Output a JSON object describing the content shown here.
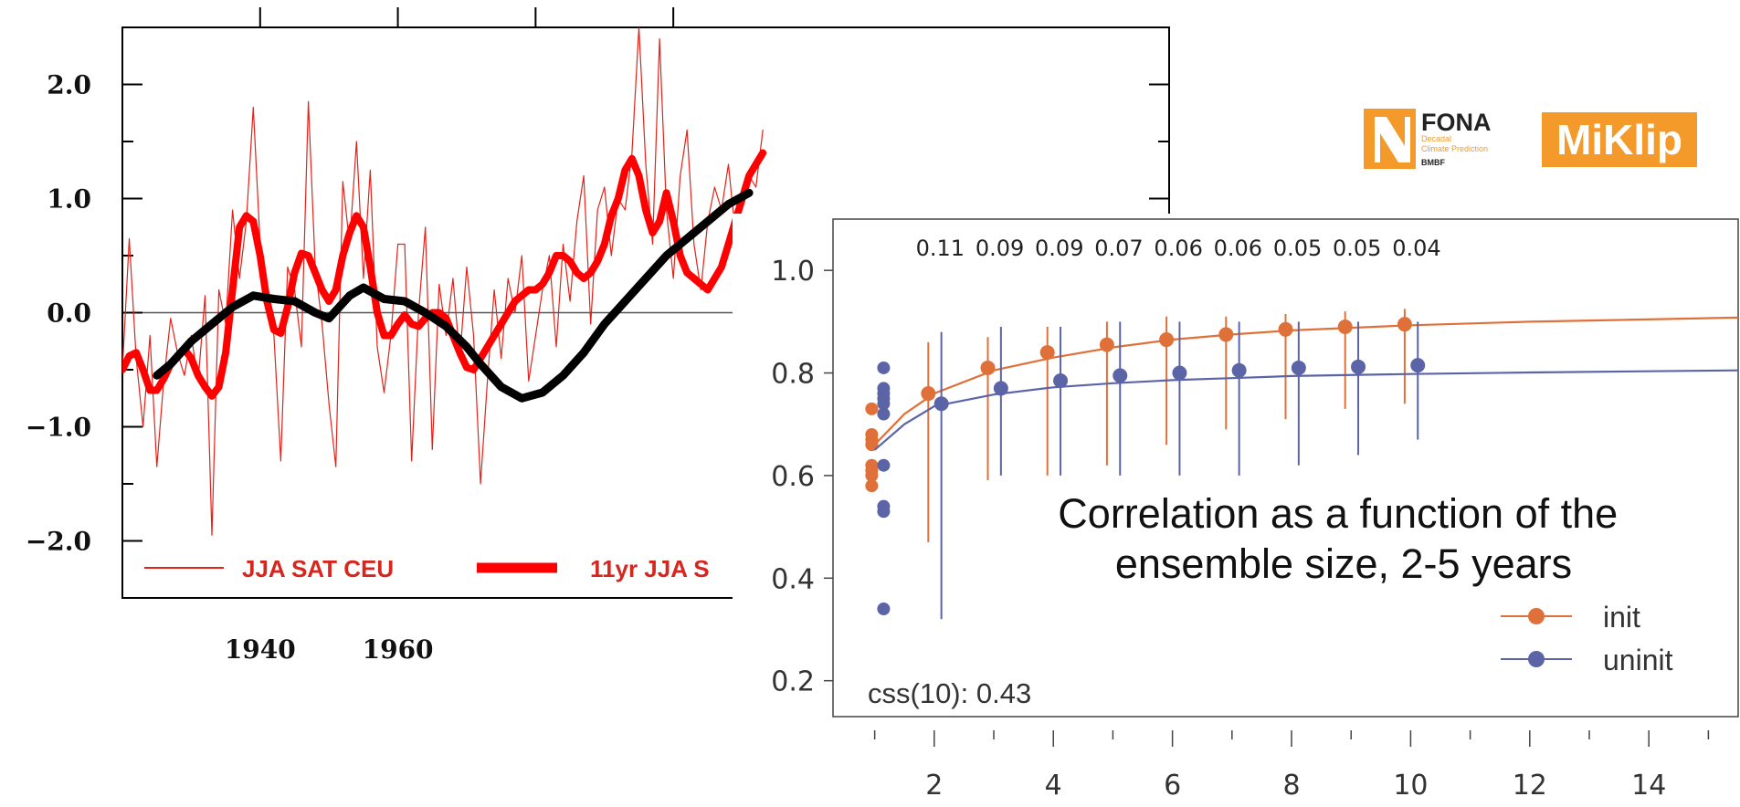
{
  "logos": {
    "fona": {
      "name": "FONA",
      "sub1": "Decadal",
      "sub2": "Climate Prediction",
      "sub3": "BMBF",
      "color": "#f39a2a"
    },
    "miklip": {
      "name": "MiKlip",
      "color": "#f39a2a"
    }
  },
  "chart_data": [
    {
      "type": "line",
      "title": "",
      "xlabel": "",
      "ylabel": "",
      "xlim": [
        1920,
        2072
      ],
      "ylim": [
        -2.5,
        2.5
      ],
      "x_ticks": [
        1940,
        1960
      ],
      "x_tick_labels": [
        "1940",
        "1960"
      ],
      "y_ticks": [
        2.0,
        1.0,
        0.0,
        -1.0,
        -2.0
      ],
      "y_tick_labels": [
        "2.0",
        "1.0",
        "0.0",
        "−1.0",
        "−2.0"
      ],
      "legend_labels": [
        "JJA SAT CEU",
        "11yr JJA S"
      ],
      "series": [
        {
          "name": "JJA SAT CEU",
          "color": "#e32219",
          "x": [
            1920,
            1921,
            1922,
            1923,
            1924,
            1925,
            1926,
            1927,
            1928,
            1929,
            1930,
            1931,
            1932,
            1933,
            1934,
            1935,
            1936,
            1937,
            1938,
            1939,
            1940,
            1941,
            1942,
            1943,
            1944,
            1945,
            1946,
            1947,
            1948,
            1949,
            1950,
            1951,
            1952,
            1953,
            1954,
            1955,
            1956,
            1957,
            1958,
            1959,
            1960,
            1961,
            1962,
            1963,
            1964,
            1965,
            1966,
            1967,
            1968,
            1969,
            1970,
            1971,
            1972,
            1973,
            1974,
            1975,
            1976,
            1977,
            1978,
            1979,
            1980,
            1981,
            1982,
            1983,
            1984,
            1985,
            1986,
            1987,
            1988,
            1989,
            1990,
            1991,
            1992,
            1993,
            1994,
            1995,
            1996,
            1997,
            1998,
            1999,
            2000,
            2001,
            2002,
            2003,
            2004,
            2005,
            2006,
            2007,
            2008,
            2009,
            2010,
            2011,
            2012,
            2013
          ],
          "values": [
            -0.5,
            0.65,
            -0.4,
            -1.0,
            -0.2,
            -1.35,
            -0.6,
            -0.05,
            -0.35,
            -0.55,
            -0.2,
            -0.6,
            0.15,
            -1.95,
            0.2,
            -0.1,
            0.9,
            0.3,
            0.8,
            1.8,
            0.6,
            0.1,
            -0.2,
            -1.3,
            0.4,
            0.2,
            -0.3,
            1.85,
            0.4,
            -0.1,
            -0.8,
            -1.35,
            1.15,
            0.6,
            1.5,
            0.3,
            1.25,
            -0.3,
            -0.7,
            -0.2,
            0.6,
            0.6,
            -1.3,
            0.0,
            0.75,
            -1.2,
            0.25,
            -0.2,
            0.3,
            -0.4,
            0.4,
            -0.2,
            -1.5,
            -0.6,
            0.2,
            -0.4,
            0.3,
            0.0,
            0.5,
            -0.6,
            -0.2,
            0.2,
            0.5,
            -0.3,
            0.6,
            0.1,
            0.8,
            1.2,
            -0.1,
            0.9,
            1.1,
            0.5,
            1.0,
            0.9,
            1.4,
            2.5,
            1.3,
            0.6,
            2.4,
            0.9,
            0.3,
            1.2,
            1.6,
            0.6,
            0.2,
            0.8,
            1.1,
            0.9,
            1.3,
            0.7,
            1.0,
            1.2,
            1.1,
            1.6
          ]
        },
        {
          "name": "11yr JJA S",
          "color": "#ff0000",
          "x": [
            1920,
            1921,
            1922,
            1923,
            1924,
            1925,
            1926,
            1927,
            1928,
            1929,
            1930,
            1931,
            1932,
            1933,
            1934,
            1935,
            1936,
            1937,
            1938,
            1939,
            1940,
            1941,
            1942,
            1943,
            1944,
            1945,
            1946,
            1947,
            1948,
            1949,
            1950,
            1951,
            1952,
            1953,
            1954,
            1955,
            1956,
            1957,
            1958,
            1959,
            1960,
            1961,
            1962,
            1963,
            1964,
            1965,
            1966,
            1967,
            1968,
            1969,
            1970,
            1971,
            1972,
            1973,
            1974,
            1975,
            1976,
            1977,
            1978,
            1979,
            1980,
            1981,
            1982,
            1983,
            1984,
            1985,
            1986,
            1987,
            1988,
            1989,
            1990,
            1991,
            1992,
            1993,
            1994,
            1995,
            1996,
            1997,
            1998,
            1999,
            2000,
            2001,
            2002,
            2003,
            2004,
            2005,
            2006,
            2007,
            2008,
            2009,
            2010,
            2011,
            2012,
            2013
          ],
          "values": [
            -0.5,
            -0.38,
            -0.35,
            -0.5,
            -0.68,
            -0.68,
            -0.58,
            -0.45,
            -0.38,
            -0.32,
            -0.4,
            -0.55,
            -0.65,
            -0.73,
            -0.65,
            -0.35,
            0.2,
            0.75,
            0.85,
            0.8,
            0.5,
            0.1,
            -0.15,
            -0.18,
            0.05,
            0.35,
            0.52,
            0.5,
            0.35,
            0.2,
            0.1,
            0.2,
            0.5,
            0.7,
            0.85,
            0.75,
            0.4,
            0.0,
            -0.2,
            -0.2,
            -0.1,
            -0.02,
            -0.1,
            -0.12,
            -0.05,
            0.0,
            0.0,
            -0.05,
            -0.2,
            -0.35,
            -0.48,
            -0.5,
            -0.4,
            -0.3,
            -0.2,
            -0.1,
            0.0,
            0.1,
            0.15,
            0.2,
            0.2,
            0.25,
            0.35,
            0.5,
            0.5,
            0.45,
            0.35,
            0.3,
            0.35,
            0.45,
            0.6,
            0.85,
            1.0,
            1.25,
            1.35,
            1.2,
            0.9,
            0.7,
            0.8,
            1.05,
            0.8,
            0.5,
            0.35,
            0.3,
            0.25,
            0.2,
            0.3,
            0.4,
            0.6,
            0.8,
            1.0,
            1.2,
            1.3,
            1.4
          ]
        },
        {
          "name": "",
          "color": "#000000",
          "x": [
            1925,
            1927,
            1930,
            1933,
            1936,
            1939,
            1942,
            1945,
            1948,
            1950,
            1953,
            1955,
            1958,
            1961,
            1964,
            1967,
            1970,
            1972,
            1975,
            1978,
            1981,
            1984,
            1987,
            1990,
            1993,
            1996,
            1999,
            2002,
            2005,
            2008,
            2011
          ],
          "values": [
            -0.55,
            -0.45,
            -0.25,
            -0.1,
            0.05,
            0.15,
            0.12,
            0.1,
            0.0,
            -0.05,
            0.15,
            0.22,
            0.12,
            0.1,
            0.0,
            -0.12,
            -0.3,
            -0.45,
            -0.65,
            -0.75,
            -0.7,
            -0.55,
            -0.35,
            -0.1,
            0.1,
            0.3,
            0.5,
            0.65,
            0.8,
            0.95,
            1.05
          ]
        }
      ]
    },
    {
      "type": "scatter",
      "title": "Correlation as a function of the ensemble size, 2-5 years",
      "xlabel": "",
      "ylabel": "",
      "xlim": [
        0.3,
        15.5
      ],
      "ylim": [
        0.13,
        1.1
      ],
      "x_ticks": [
        2,
        4,
        6,
        8,
        10,
        12,
        14
      ],
      "x_tick_labels": [
        "2",
        "4",
        "6",
        "8",
        "10",
        "12",
        "14"
      ],
      "y_ticks": [
        0.2,
        0.4,
        0.6,
        0.8,
        1.0
      ],
      "y_tick_labels": [
        "0.2",
        "0.4",
        "0.6",
        "0.8",
        "1.0"
      ],
      "top_labels": [
        "0.11",
        "0.09",
        "0.09",
        "0.07",
        "0.06",
        "0.06",
        "0.05",
        "0.05",
        "0.04"
      ],
      "annotation": "css(10): 0.43",
      "legend_labels": [
        "init",
        "uninit"
      ],
      "series": [
        {
          "name": "init",
          "color": "#e0703a",
          "members": [
            0.73,
            0.68,
            0.67,
            0.66,
            0.62,
            0.61,
            0.6,
            0.58
          ],
          "ensemble_size": [
            2,
            3,
            4,
            5,
            6,
            7,
            8,
            9,
            10
          ],
          "values": [
            0.76,
            0.81,
            0.84,
            0.855,
            0.865,
            0.875,
            0.885,
            0.89,
            0.895
          ],
          "lower": [
            0.47,
            0.54,
            0.6,
            0.62,
            0.66,
            0.69,
            0.71,
            0.73,
            0.74
          ],
          "upper": [
            0.86,
            0.87,
            0.89,
            0.9,
            0.91,
            0.91,
            0.915,
            0.92,
            0.925
          ],
          "fit": [
            [
              1,
              0.66
            ],
            [
              1.5,
              0.72
            ],
            [
              2,
              0.76
            ],
            [
              3,
              0.805
            ],
            [
              4,
              0.83
            ],
            [
              5,
              0.85
            ],
            [
              6,
              0.865
            ],
            [
              7,
              0.875
            ],
            [
              8,
              0.883
            ],
            [
              10,
              0.893
            ],
            [
              12,
              0.9
            ],
            [
              15.5,
              0.908
            ]
          ]
        },
        {
          "name": "uninit",
          "color": "#5c64a8",
          "members": [
            0.81,
            0.77,
            0.76,
            0.75,
            0.74,
            0.72,
            0.62,
            0.54,
            0.53,
            0.34
          ],
          "ensemble_size": [
            2,
            3,
            4,
            5,
            6,
            7,
            8,
            9,
            10
          ],
          "values": [
            0.74,
            0.77,
            0.785,
            0.795,
            0.8,
            0.805,
            0.81,
            0.812,
            0.815
          ],
          "lower": [
            0.32,
            0.6,
            0.6,
            0.6,
            0.6,
            0.6,
            0.62,
            0.64,
            0.67
          ],
          "upper": [
            0.88,
            0.89,
            0.89,
            0.9,
            0.9,
            0.9,
            0.9,
            0.9,
            0.9
          ],
          "fit": [
            [
              1,
              0.65
            ],
            [
              1.5,
              0.7
            ],
            [
              2,
              0.735
            ],
            [
              3,
              0.758
            ],
            [
              4,
              0.772
            ],
            [
              5,
              0.78
            ],
            [
              6,
              0.786
            ],
            [
              7,
              0.79
            ],
            [
              8,
              0.794
            ],
            [
              10,
              0.798
            ],
            [
              12,
              0.801
            ],
            [
              15.5,
              0.805
            ]
          ]
        }
      ]
    }
  ]
}
